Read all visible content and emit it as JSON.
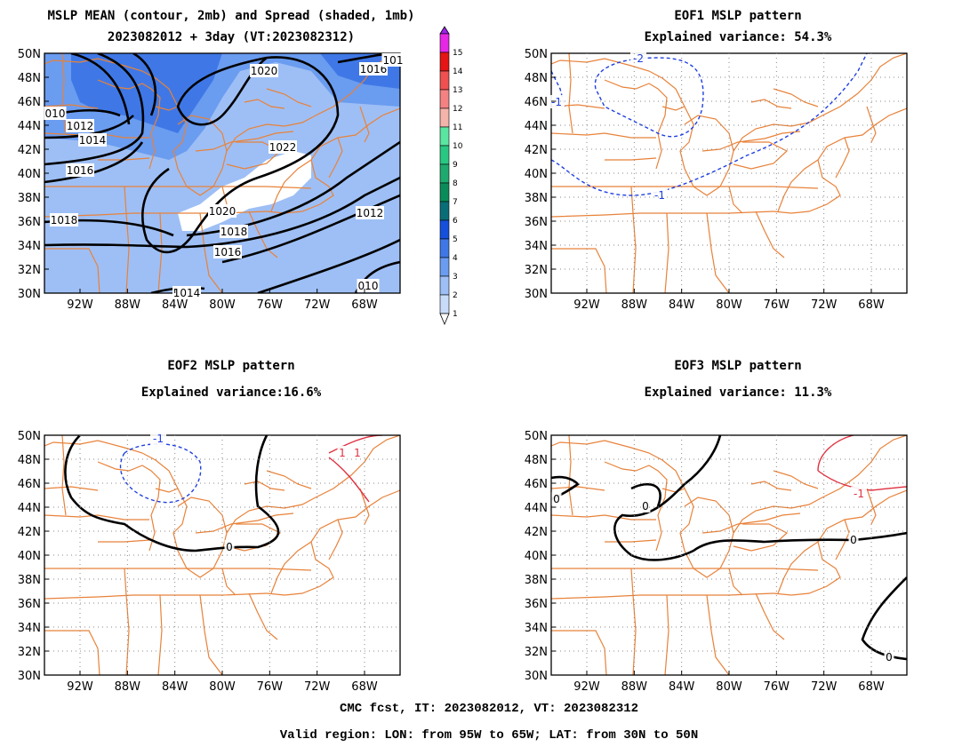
{
  "panels": [
    {
      "id": "mean",
      "title_line1": "MSLP MEAN (contour, 2mb) and Spread (shaded, 1mb)",
      "title_line2": "2023082012 + 3day (VT:2023082312)"
    },
    {
      "id": "eof1",
      "title_line1": "EOF1 MSLP pattern",
      "title_line2": "Explained variance: 54.3%"
    },
    {
      "id": "eof2",
      "title_line1": "EOF2 MSLP pattern",
      "title_line2": "Explained variance:16.6%"
    },
    {
      "id": "eof3",
      "title_line1": "EOF3 MSLP pattern",
      "title_line2": "Explained variance: 11.3%"
    }
  ],
  "axes": {
    "lat_labels": [
      "30N",
      "32N",
      "34N",
      "36N",
      "38N",
      "40N",
      "42N",
      "44N",
      "46N",
      "48N",
      "50N"
    ],
    "lon_labels": [
      "92W",
      "88W",
      "84W",
      "80W",
      "76W",
      "72W",
      "68W"
    ],
    "lon_range": [
      -95,
      -65
    ],
    "lat_range": [
      30,
      50
    ]
  },
  "colorbar": {
    "labels": [
      "1",
      "2",
      "3",
      "4",
      "5",
      "6",
      "7",
      "8",
      "9",
      "10",
      "11",
      "12",
      "13",
      "14",
      "15"
    ],
    "colors": [
      "#c8dcfa",
      "#9ebff5",
      "#6a9cf0",
      "#3f78e6",
      "#1450dc",
      "#0a6e78",
      "#0a8c5a",
      "#1eaa6e",
      "#28c882",
      "#5ae6a0",
      "#f5b4aa",
      "#f58282",
      "#f05050",
      "#e61414",
      "#e628e6",
      "#a020f0"
    ]
  },
  "mean_contour_labels": [
    "1020",
    "1016",
    "101",
    "010",
    "1012",
    "1014",
    "1016",
    "1018",
    "1022",
    "1020",
    "1018",
    "1016",
    "1012",
    "1014",
    "010"
  ],
  "eof1_labels": [
    "-2",
    "-1",
    "-1"
  ],
  "eof2_labels": [
    "-1",
    "0",
    "1",
    "1"
  ],
  "eof3_labels": [
    "0",
    "0",
    "-1",
    "0",
    "0"
  ],
  "colors": {
    "border": "#e8823a",
    "spread_light": "#9ebff5",
    "spread_mid": "#6a9cf0",
    "spread_dark": "#3f78e6",
    "negative": "#2040e0",
    "positive": "#e03040",
    "zero": "#000000"
  },
  "footer": {
    "line1": "CMC fcst, IT: 2023082012, VT: 2023082312",
    "line2": "Valid region: LON: from 95W to 65W; LAT: from 30N to 50N"
  }
}
